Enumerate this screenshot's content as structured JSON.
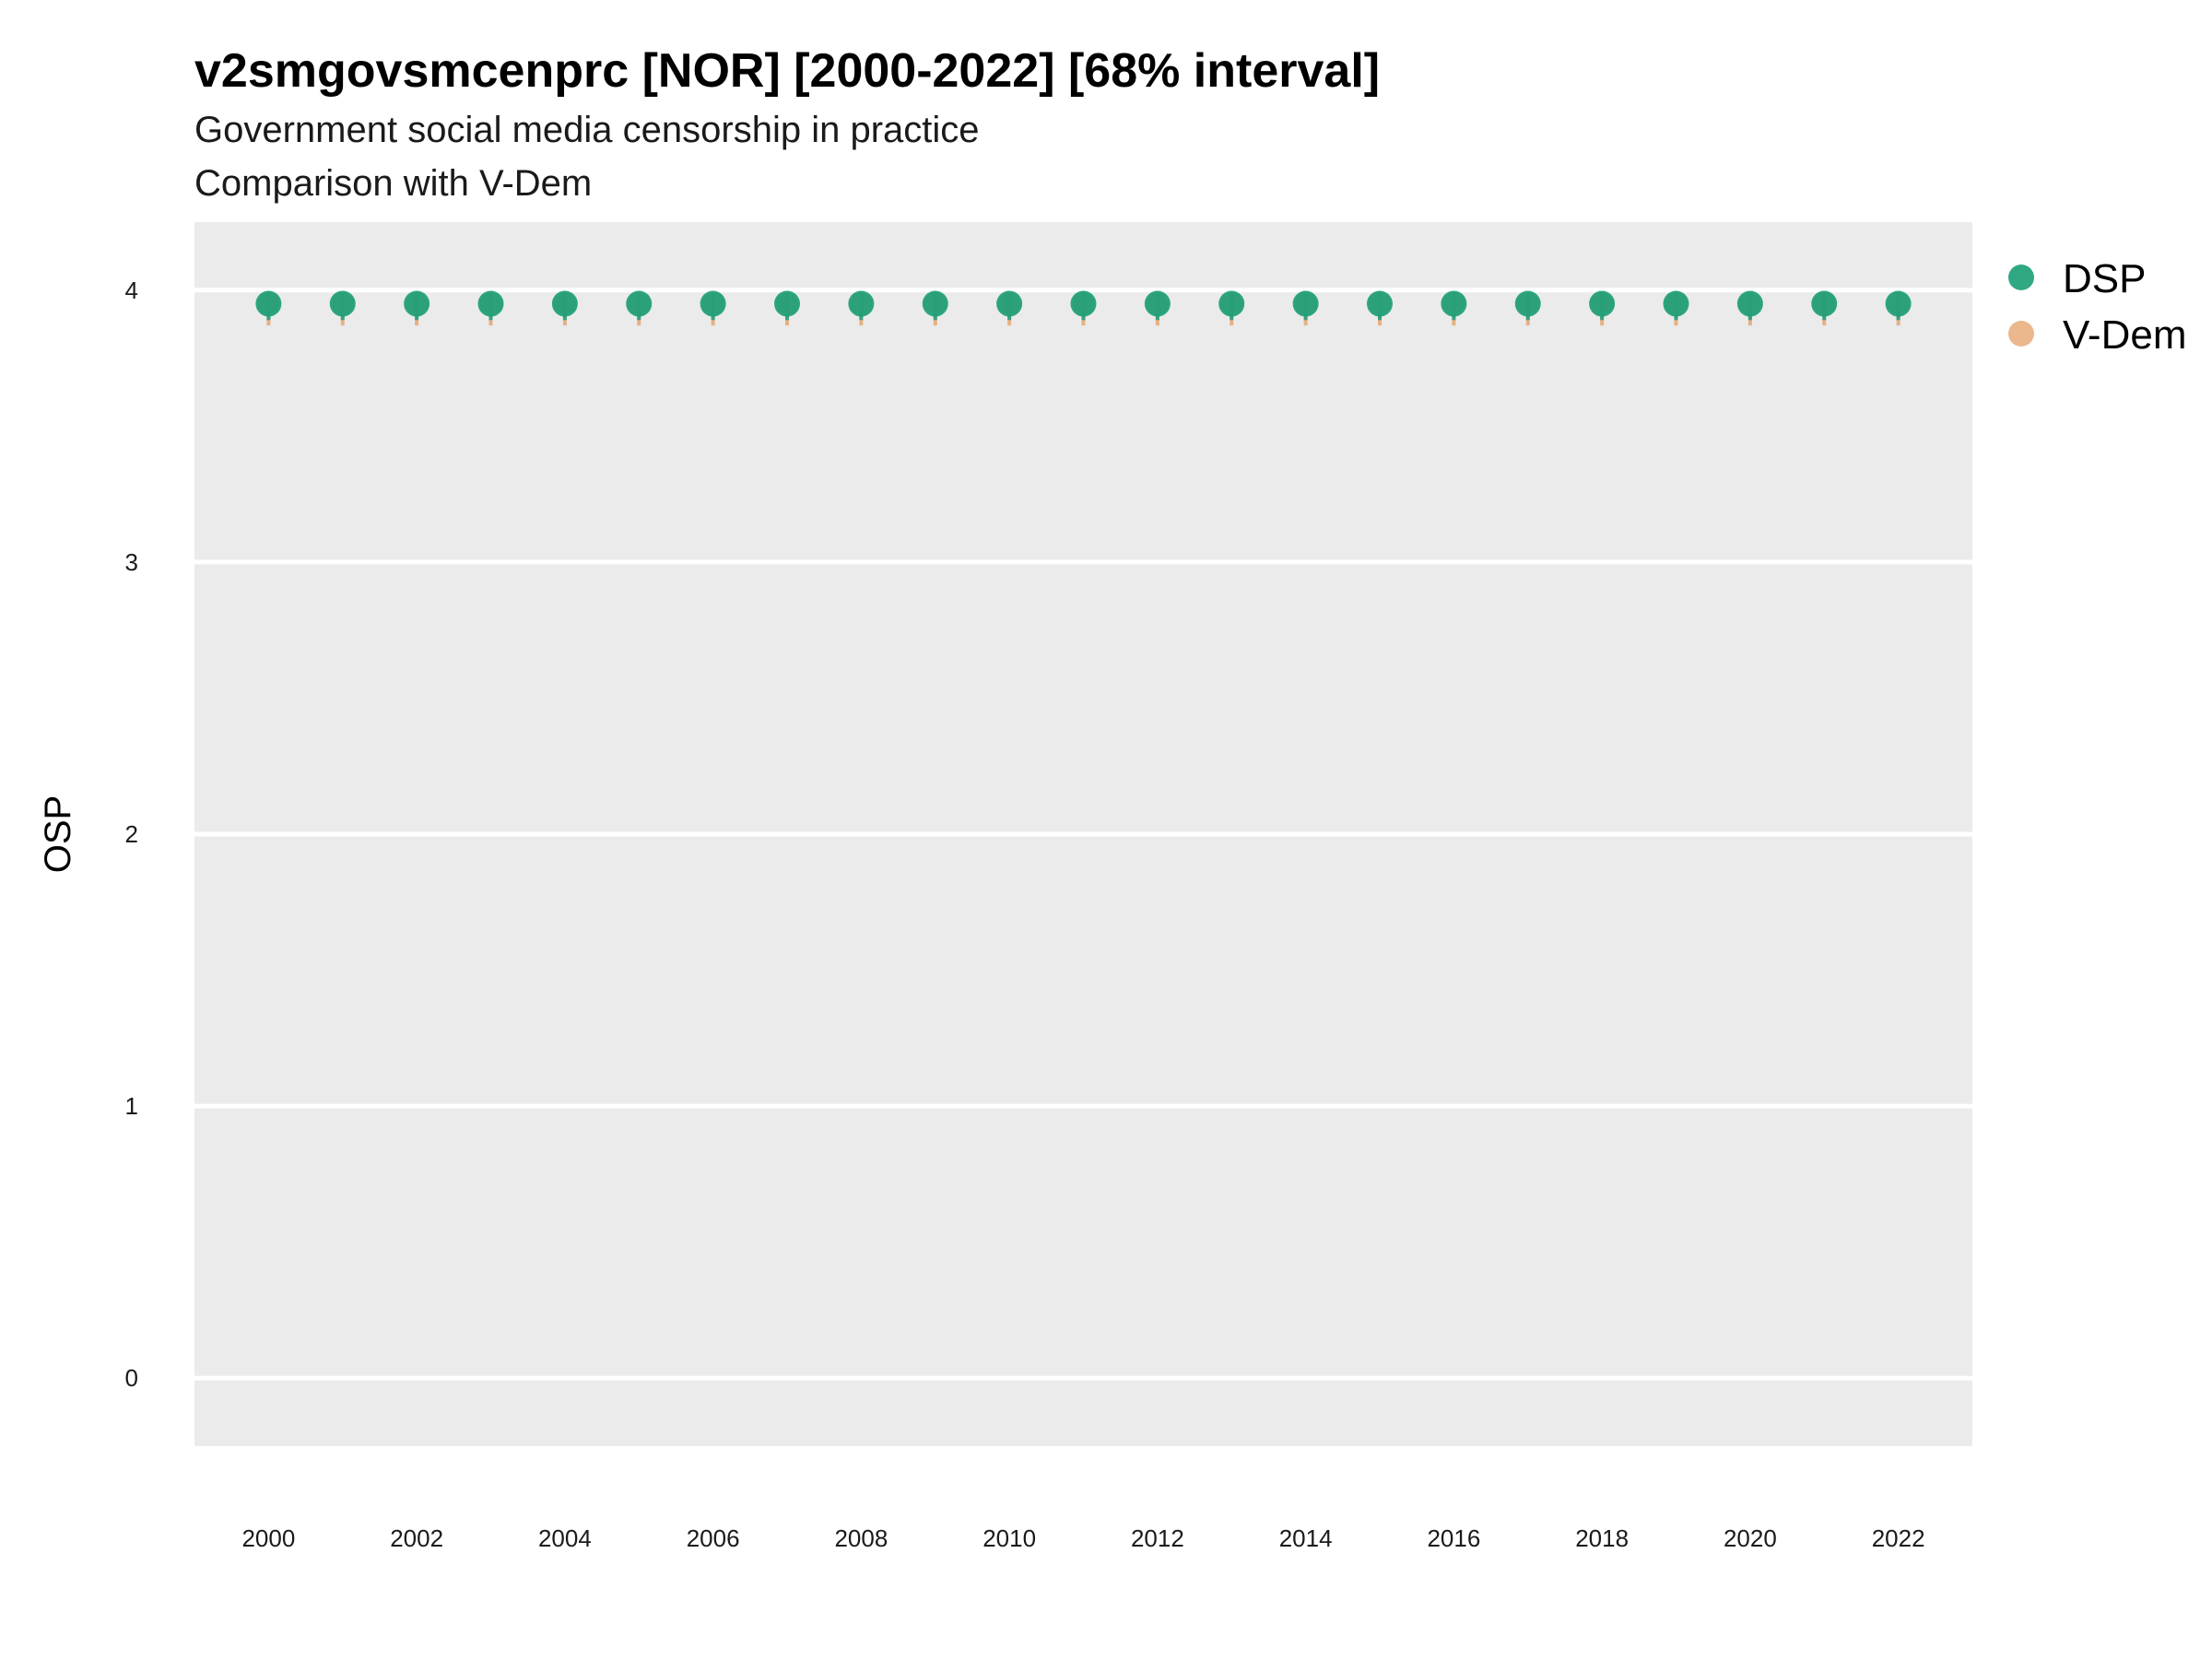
{
  "colors": {
    "DSP": "#1b9e77",
    "V-Dem": "#e6a672",
    "panel": "#ebebeb",
    "grid": "#ffffff"
  },
  "chart_data": {
    "type": "scatter",
    "title": "v2smgovsmcenprc [NOR] [2000-2022] [68% interval]",
    "subtitle": [
      "Government social media censorship in practice",
      "Comparison with V-Dem"
    ],
    "xlabel": "",
    "ylabel": "OSP",
    "xlim": [
      1999.0,
      2023.0
    ],
    "ylim": [
      -0.25,
      4.25
    ],
    "x_ticks": [
      2000,
      2002,
      2004,
      2006,
      2008,
      2010,
      2012,
      2014,
      2016,
      2018,
      2020,
      2022
    ],
    "y_ticks": [
      0,
      1,
      2,
      3,
      4
    ],
    "grid": true,
    "legend_position": "right",
    "x": [
      2000,
      2001,
      2002,
      2003,
      2004,
      2005,
      2006,
      2007,
      2008,
      2009,
      2010,
      2011,
      2012,
      2013,
      2014,
      2015,
      2016,
      2017,
      2018,
      2019,
      2020,
      2021,
      2022
    ],
    "series": [
      {
        "name": "DSP",
        "values": [
          3.95,
          3.95,
          3.95,
          3.95,
          3.95,
          3.95,
          3.95,
          3.95,
          3.95,
          3.95,
          3.95,
          3.95,
          3.95,
          3.95,
          3.95,
          3.95,
          3.95,
          3.95,
          3.95,
          3.95,
          3.95,
          3.95,
          3.95
        ],
        "lower": [
          3.89,
          3.89,
          3.89,
          3.89,
          3.89,
          3.89,
          3.89,
          3.89,
          3.89,
          3.89,
          3.89,
          3.89,
          3.89,
          3.89,
          3.89,
          3.89,
          3.89,
          3.89,
          3.89,
          3.89,
          3.89,
          3.89,
          3.89
        ],
        "upper": [
          3.99,
          3.99,
          3.99,
          3.99,
          3.99,
          3.99,
          3.99,
          3.99,
          3.99,
          3.99,
          3.99,
          3.99,
          3.99,
          3.99,
          3.99,
          3.99,
          3.99,
          3.99,
          3.99,
          3.99,
          3.99,
          3.99,
          3.99
        ]
      },
      {
        "name": "V-Dem",
        "values": [
          3.95,
          3.95,
          3.95,
          3.95,
          3.95,
          3.95,
          3.95,
          3.95,
          3.95,
          3.95,
          3.95,
          3.95,
          3.95,
          3.95,
          3.95,
          3.95,
          3.95,
          3.95,
          3.95,
          3.95,
          3.95,
          3.95,
          3.95
        ],
        "lower": [
          3.87,
          3.87,
          3.87,
          3.87,
          3.87,
          3.87,
          3.87,
          3.87,
          3.87,
          3.87,
          3.87,
          3.87,
          3.87,
          3.87,
          3.87,
          3.87,
          3.87,
          3.87,
          3.87,
          3.87,
          3.87,
          3.87,
          3.87
        ],
        "upper": [
          3.99,
          3.99,
          3.99,
          3.99,
          3.99,
          3.99,
          3.99,
          3.99,
          3.99,
          3.99,
          3.99,
          3.99,
          3.99,
          3.99,
          3.99,
          3.99,
          3.99,
          3.99,
          3.99,
          3.99,
          3.99,
          3.99,
          3.99
        ]
      }
    ]
  }
}
